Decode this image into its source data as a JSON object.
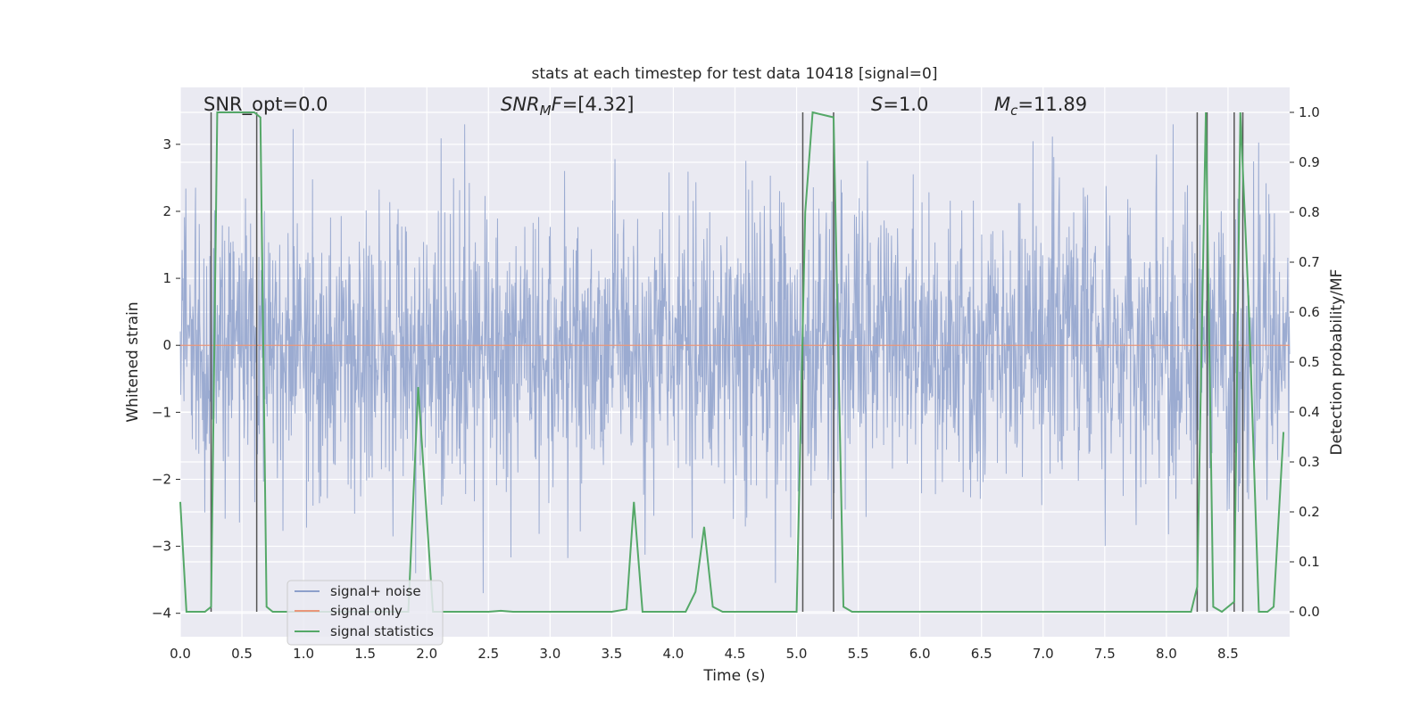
{
  "chart_data": {
    "type": "line",
    "title": "stats at each timestep for test data 10418 [signal=0]",
    "xlabel": "Time (s)",
    "ylabel": "Whitened strain",
    "ylabel_right": "Detection probability/MF",
    "xlim": [
      0.0,
      9.0
    ],
    "ylim": [
      -4.35,
      3.85
    ],
    "ylim_right": [
      -0.05,
      1.05
    ],
    "x_ticks": [
      "0.0",
      "0.5",
      "1.0",
      "1.5",
      "2.0",
      "2.5",
      "3.0",
      "3.5",
      "4.0",
      "4.5",
      "5.0",
      "5.5",
      "6.0",
      "6.5",
      "7.0",
      "7.5",
      "8.0",
      "8.5"
    ],
    "y_ticks": [
      "3",
      "2",
      "1",
      "0",
      "−1",
      "−2",
      "−3",
      "−4"
    ],
    "y_ticks_right": [
      "1.0",
      "0.9",
      "0.8",
      "0.7",
      "0.6",
      "0.5",
      "0.4",
      "0.3",
      "0.2",
      "0.1",
      "0.0"
    ],
    "grid": true,
    "legend_placement": "lower-left",
    "annotations": {
      "snr_opt": "SNR_opt=0.0",
      "snr_mf_base": "SNR",
      "snr_mf_sub": "M",
      "snr_mf_rest": "F=[4.32]",
      "s_base": "S",
      "s_rest": "=1.0",
      "mc_base": "M",
      "mc_sub": "c",
      "mc_rest": "=11.89"
    },
    "series": [
      {
        "name": "signal+ noise",
        "color": "#8da0cb",
        "description_type": "noise",
        "range_approx": [
          -3.7,
          3.3
        ]
      },
      {
        "name": "signal only",
        "color": "#e8967a",
        "x": [
          0.0,
          9.0
        ],
        "y": [
          0.0,
          0.0
        ]
      },
      {
        "name": "signal statistics",
        "color": "#55a868",
        "axis": "right",
        "x": [
          0.0,
          0.05,
          0.2,
          0.25,
          0.3,
          0.6,
          0.65,
          0.7,
          0.75,
          1.85,
          1.93,
          2.05,
          2.5,
          2.6,
          2.7,
          3.5,
          3.62,
          3.68,
          3.75,
          4.1,
          4.18,
          4.25,
          4.32,
          4.4,
          5.0,
          5.07,
          5.13,
          5.3,
          5.38,
          5.45,
          8.2,
          8.25,
          8.32,
          8.38,
          8.45,
          8.55,
          8.6,
          8.67,
          8.75,
          8.82,
          8.87,
          8.95
        ],
        "y": [
          0.22,
          0.0,
          0.0,
          0.01,
          1.0,
          1.0,
          0.99,
          0.01,
          0.0,
          0.0,
          0.45,
          0.0,
          0.0,
          0.002,
          0.0,
          0.0,
          0.005,
          0.22,
          0.0,
          0.0,
          0.04,
          0.17,
          0.01,
          0.0,
          0.0,
          0.8,
          1.0,
          0.99,
          0.01,
          0.0,
          0.0,
          0.05,
          1.0,
          0.01,
          0.0,
          0.02,
          1.0,
          0.6,
          0.0,
          0.0,
          0.01,
          0.36
        ]
      }
    ],
    "vlines": [
      0.25,
      0.62,
      5.05,
      5.3,
      8.25,
      8.33,
      8.55,
      8.62
    ],
    "vline_color": "#555555"
  }
}
